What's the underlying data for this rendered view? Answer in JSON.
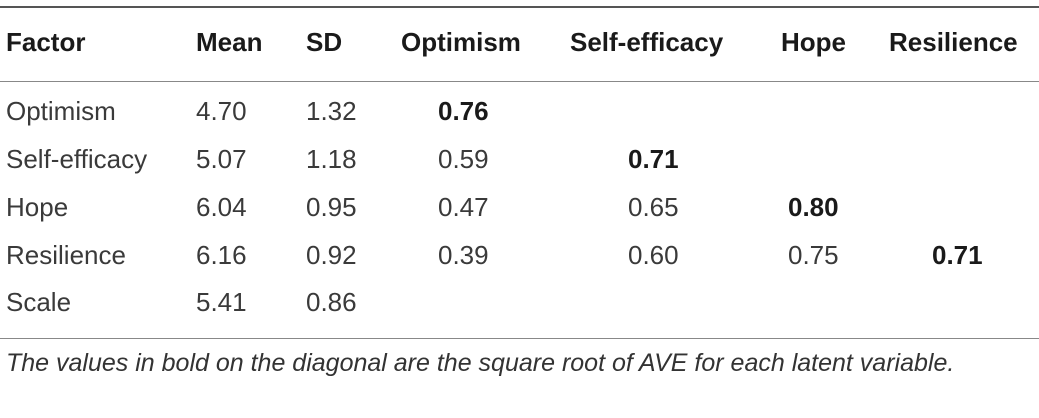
{
  "table": {
    "headers": [
      "Factor",
      "Mean",
      "SD",
      "Optimism",
      "Self-efficacy",
      "Hope",
      "Resilience"
    ],
    "rows": [
      {
        "factor": "Optimism",
        "mean": "4.70",
        "sd": "1.32",
        "optimism": "0.76",
        "self_efficacy": "",
        "hope": "",
        "resilience": ""
      },
      {
        "factor": "Self-efficacy",
        "mean": "5.07",
        "sd": "1.18",
        "optimism": "0.59",
        "self_efficacy": "0.71",
        "hope": "",
        "resilience": ""
      },
      {
        "factor": "Hope",
        "mean": "6.04",
        "sd": "0.95",
        "optimism": "0.47",
        "self_efficacy": "0.65",
        "hope": "0.80",
        "resilience": ""
      },
      {
        "factor": "Resilience",
        "mean": "6.16",
        "sd": "0.92",
        "optimism": "0.39",
        "self_efficacy": "0.60",
        "hope": "0.75",
        "resilience": "0.71"
      },
      {
        "factor": "Scale",
        "mean": "5.41",
        "sd": "0.86",
        "optimism": "",
        "self_efficacy": "",
        "hope": "",
        "resilience": ""
      }
    ],
    "note": "The values in bold on the diagonal are the square root of AVE for each latent variable."
  }
}
